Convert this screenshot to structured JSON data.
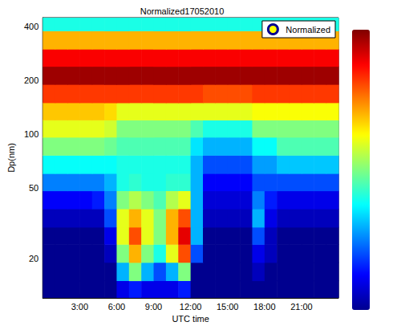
{
  "chart_data": {
    "type": "heatmap",
    "title": "Normalized17052010",
    "x_label": "UTC time",
    "y_label": "Dp(nm)",
    "xlim": [
      0,
      24
    ],
    "ylim": [
      12,
      450
    ],
    "xticks": [
      {
        "value": 3,
        "label": "3:00"
      },
      {
        "value": 6,
        "label": "6:00"
      },
      {
        "value": 9,
        "label": "9:00"
      },
      {
        "value": 12,
        "label": "12:00"
      },
      {
        "value": 15,
        "label": "15:00"
      },
      {
        "value": 18,
        "label": "18:00"
      },
      {
        "value": 21,
        "label": "21:00"
      }
    ],
    "yticks": [
      20,
      50,
      100,
      200,
      400
    ],
    "log": "y",
    "grid": false,
    "legend": "upper right",
    "colorbar": {
      "range": [
        0,
        1
      ]
    },
    "series": [
      {
        "name": "Normalized",
        "x_edges": [
          0,
          1,
          2,
          3,
          4,
          5,
          6,
          7,
          8,
          9,
          10,
          11,
          12,
          13,
          14,
          15,
          16,
          17,
          18,
          19,
          20,
          21,
          22,
          23,
          24
        ],
        "y_edges": [
          12,
          15,
          19,
          24,
          30,
          38,
          48,
          60,
          76,
          96,
          120,
          150,
          190,
          240,
          300,
          380,
          450
        ],
        "values": [
          [
            0,
            0,
            0,
            0,
            0,
            0,
            0.1,
            0.15,
            0.1,
            0.1,
            0.1,
            0.15,
            0,
            0,
            0,
            0,
            0,
            0,
            0,
            0,
            0,
            0,
            0,
            0
          ],
          [
            0,
            0,
            0,
            0,
            0,
            0,
            0.3,
            0.5,
            0.3,
            0.2,
            0.3,
            0.5,
            0,
            0,
            0,
            0,
            0,
            0.05,
            0,
            0,
            0,
            0,
            0,
            0
          ],
          [
            0,
            0,
            0,
            0,
            0,
            0.05,
            0.5,
            0.7,
            0.5,
            0.4,
            0.6,
            0.8,
            0.2,
            0,
            0,
            0,
            0,
            0.1,
            0.05,
            0,
            0,
            0,
            0,
            0
          ],
          [
            0,
            0,
            0,
            0,
            0,
            0.1,
            0.6,
            0.8,
            0.6,
            0.5,
            0.7,
            0.9,
            0.3,
            0,
            0,
            0,
            0,
            0.2,
            0.05,
            0,
            0,
            0,
            0,
            0
          ],
          [
            0.05,
            0.05,
            0.05,
            0.05,
            0.05,
            0.2,
            0.6,
            0.7,
            0.6,
            0.5,
            0.7,
            0.8,
            0.3,
            0.05,
            0.05,
            0.05,
            0.05,
            0.3,
            0.1,
            0.05,
            0.05,
            0.05,
            0.05,
            0.05
          ],
          [
            0.12,
            0.12,
            0.12,
            0.12,
            0.15,
            0.25,
            0.5,
            0.55,
            0.5,
            0.45,
            0.55,
            0.6,
            0.3,
            0.08,
            0.08,
            0.08,
            0.08,
            0.25,
            0.15,
            0.1,
            0.1,
            0.1,
            0.1,
            0.1
          ],
          [
            0.25,
            0.25,
            0.25,
            0.25,
            0.25,
            0.3,
            0.4,
            0.42,
            0.4,
            0.4,
            0.42,
            0.42,
            0.3,
            0.12,
            0.12,
            0.12,
            0.12,
            0.2,
            0.2,
            0.2,
            0.2,
            0.2,
            0.2,
            0.2
          ],
          [
            0.38,
            0.38,
            0.38,
            0.38,
            0.38,
            0.38,
            0.4,
            0.4,
            0.4,
            0.4,
            0.4,
            0.4,
            0.3,
            0.2,
            0.2,
            0.2,
            0.2,
            0.28,
            0.28,
            0.32,
            0.32,
            0.32,
            0.32,
            0.32
          ],
          [
            0.5,
            0.5,
            0.5,
            0.5,
            0.5,
            0.48,
            0.45,
            0.45,
            0.45,
            0.45,
            0.45,
            0.45,
            0.35,
            0.3,
            0.3,
            0.3,
            0.3,
            0.38,
            0.38,
            0.45,
            0.45,
            0.45,
            0.45,
            0.45
          ],
          [
            0.6,
            0.6,
            0.6,
            0.6,
            0.6,
            0.58,
            0.5,
            0.5,
            0.5,
            0.5,
            0.5,
            0.5,
            0.45,
            0.4,
            0.4,
            0.4,
            0.4,
            0.5,
            0.5,
            0.5,
            0.5,
            0.5,
            0.5,
            0.5
          ],
          [
            0.68,
            0.68,
            0.68,
            0.68,
            0.68,
            0.66,
            0.6,
            0.6,
            0.6,
            0.6,
            0.6,
            0.6,
            0.6,
            0.6,
            0.6,
            0.6,
            0.6,
            0.62,
            0.62,
            0.62,
            0.62,
            0.62,
            0.62,
            0.62
          ],
          [
            0.82,
            0.82,
            0.82,
            0.82,
            0.82,
            0.82,
            0.82,
            0.82,
            0.82,
            0.82,
            0.82,
            0.82,
            0.82,
            0.8,
            0.8,
            0.8,
            0.8,
            0.82,
            0.82,
            0.82,
            0.82,
            0.82,
            0.82,
            0.82
          ],
          [
            0.97,
            0.97,
            0.97,
            0.97,
            0.97,
            0.97,
            0.97,
            0.97,
            0.97,
            0.97,
            0.97,
            0.97,
            0.97,
            0.97,
            0.97,
            0.97,
            0.97,
            0.97,
            0.97,
            0.97,
            0.97,
            0.97,
            0.97,
            0.97
          ],
          [
            0.88,
            0.88,
            0.88,
            0.88,
            0.88,
            0.88,
            0.88,
            0.88,
            0.88,
            0.88,
            0.88,
            0.88,
            0.88,
            0.88,
            0.88,
            0.88,
            0.88,
            0.88,
            0.88,
            0.88,
            0.88,
            0.88,
            0.88,
            0.88
          ],
          [
            0.7,
            0.7,
            0.7,
            0.7,
            0.7,
            0.7,
            0.7,
            0.7,
            0.7,
            0.7,
            0.7,
            0.7,
            0.7,
            0.7,
            0.7,
            0.7,
            0.7,
            0.7,
            0.7,
            0.7,
            0.7,
            0.7,
            0.7,
            0.7
          ],
          [
            0.4,
            0.4,
            0.4,
            0.4,
            0.4,
            0.4,
            0.4,
            0.4,
            0.4,
            0.4,
            0.4,
            0.4,
            0.4,
            0.4,
            0.4,
            0.4,
            0.4,
            0.4,
            0.4,
            0.4,
            0.4,
            0.4,
            0.4,
            0.4
          ]
        ]
      }
    ]
  }
}
